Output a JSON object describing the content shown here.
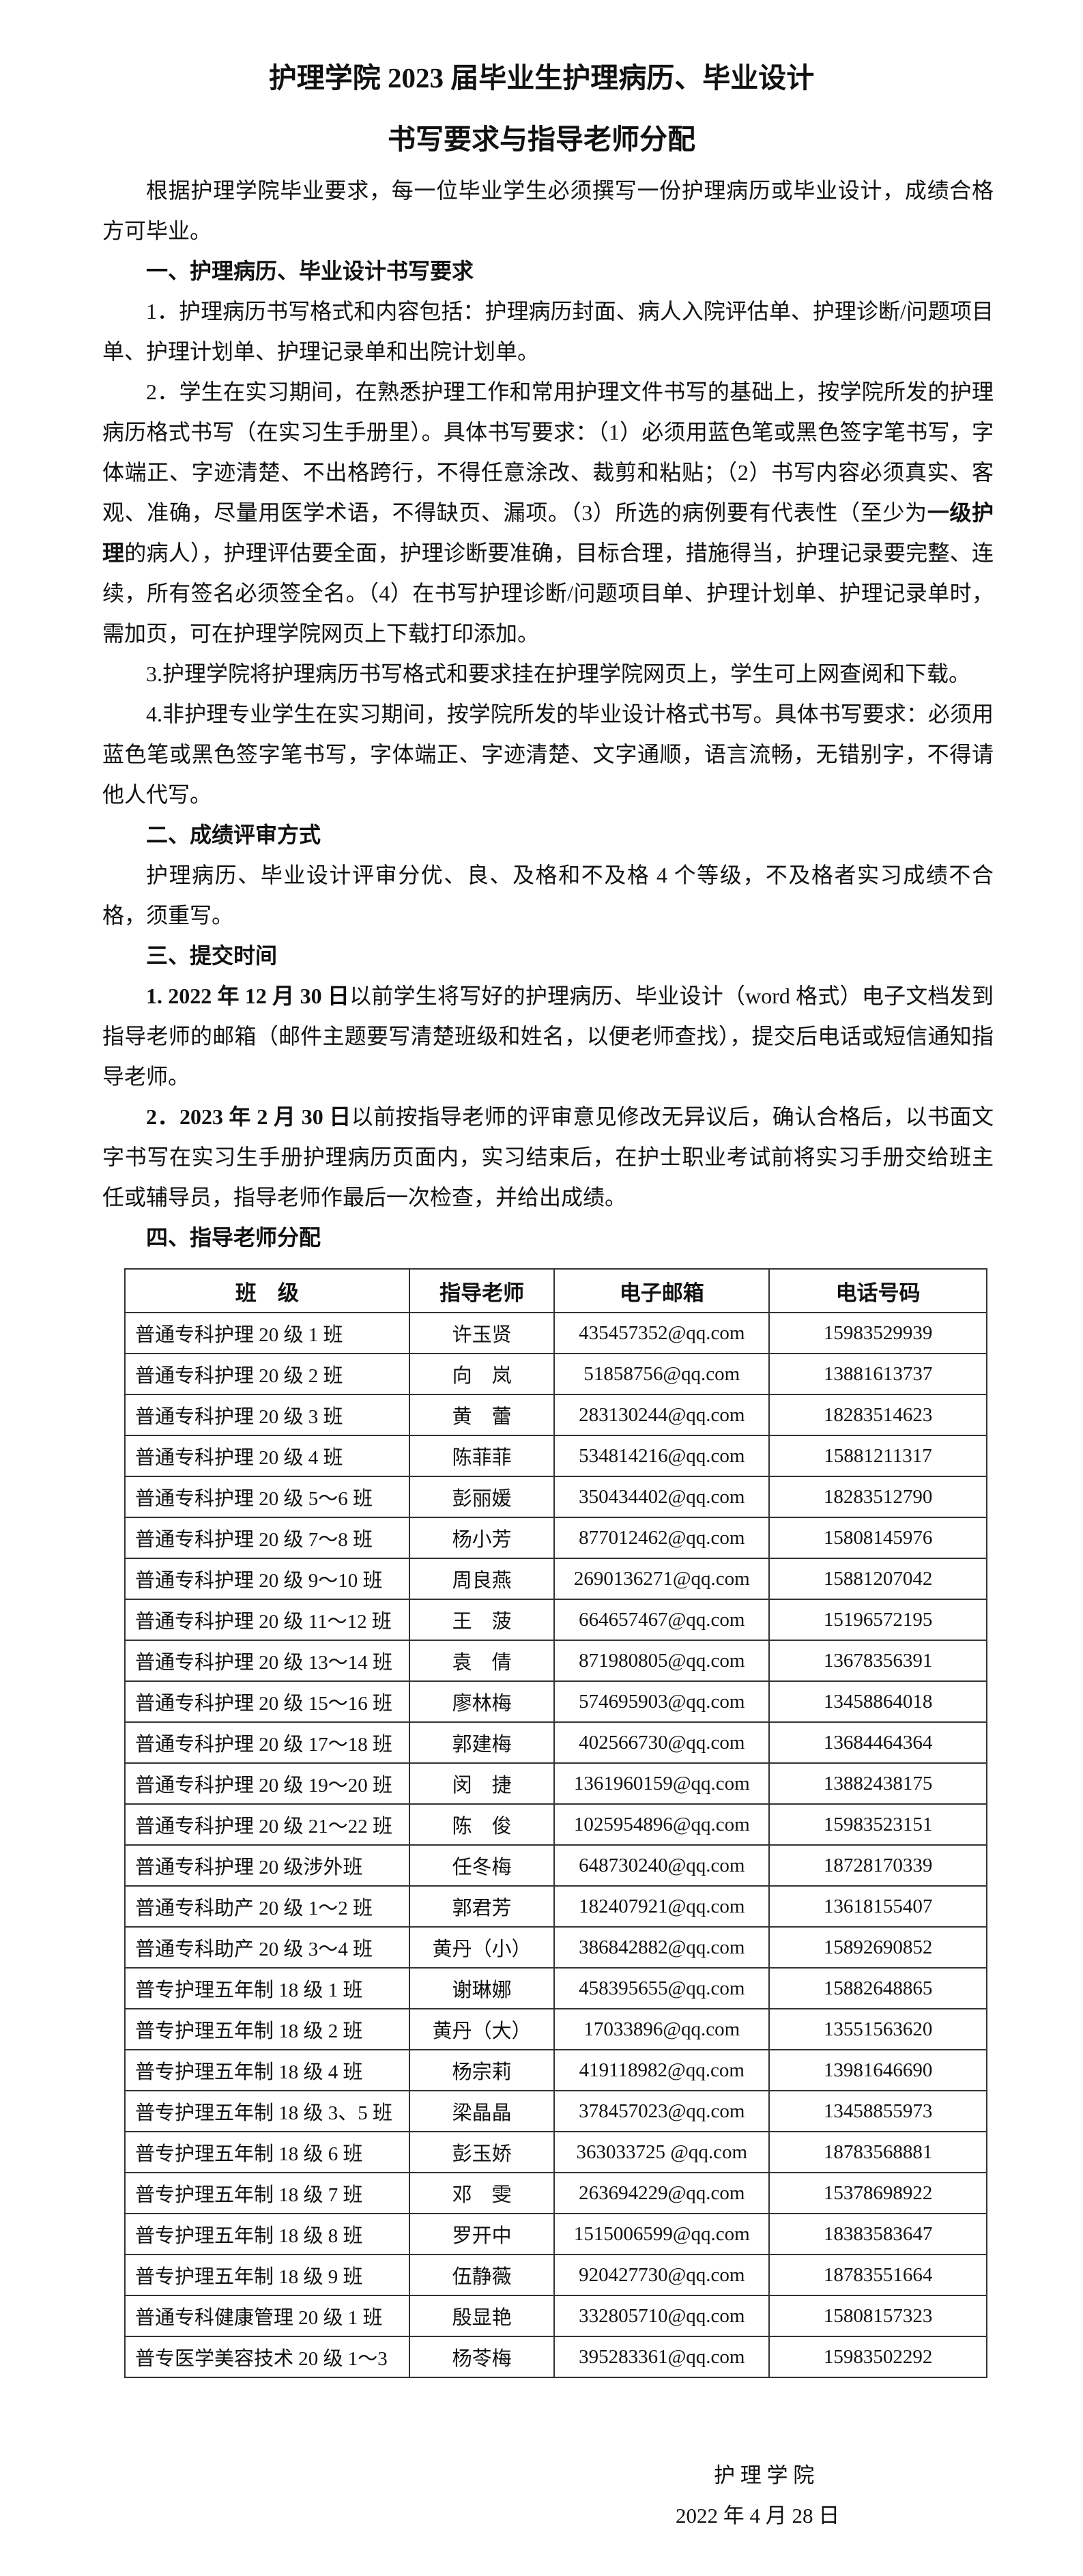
{
  "header": {
    "title_lines": [
      "护理学院 2023 届毕业生护理病历、毕业设计",
      "书写要求与指导老师分配"
    ]
  },
  "body": [
    {
      "style": "body",
      "parts": [
        {
          "text": "根据护理学院毕业要求，每一位毕业学生必须撰写一份护理病历或毕业设计，成绩合格方可毕业。"
        }
      ]
    },
    {
      "style": "heading",
      "parts": [
        {
          "text": "一、护理病历、毕业设计书写要求"
        }
      ]
    },
    {
      "style": "body",
      "parts": [
        {
          "text": "1．护理病历书写格式和内容包括：护理病历封面、病人入院评估单、护理诊断/问题项目单、护理计划单、护理记录单和出院计划单。"
        }
      ]
    },
    {
      "style": "body",
      "parts": [
        {
          "text": "2．学生在实习期间，在熟悉护理工作和常用护理文件书写的基础上，按学院所发的护理病历格式书写（在实习生手册里）。具体书写要求：（1）必须用蓝色笔或黑色签字笔书写，字体端正、字迹清楚、不出格跨行，不得任意涂改、裁剪和粘贴；（2）书写内容必须真实、客观、准确，尽量用医学术语，不得缺页、漏项。（3）所选的病例要有代表性（至少为"
        },
        {
          "text": "一级护理",
          "bold": true
        },
        {
          "text": "的病人），护理评估要全面，护理诊断要准确，目标合理，措施得当，护理记录要完整、连续，所有签名必须签全名。（4）在书写护理诊断/问题项目单、护理计划单、护理记录单时，需加页，可在护理学院网页上下载打印添加。"
        }
      ]
    },
    {
      "style": "body",
      "parts": [
        {
          "text": "3.护理学院将护理病历书写格式和要求挂在护理学院网页上，学生可上网查阅和下载。"
        }
      ]
    },
    {
      "style": "body",
      "parts": [
        {
          "text": "4.非护理专业学生在实习期间，按学院所发的毕业设计格式书写。具体书写要求：必须用蓝色笔或黑色签字笔书写，字体端正、字迹清楚、文字通顺，语言流畅，无错别字，不得请他人代写。"
        }
      ]
    },
    {
      "style": "heading",
      "parts": [
        {
          "text": "二、成绩评审方式"
        }
      ]
    },
    {
      "style": "body",
      "parts": [
        {
          "text": "护理病历、毕业设计评审分优、良、及格和不及格 4 个等级，不及格者实习成绩不合格，须重写。"
        }
      ]
    },
    {
      "style": "heading",
      "parts": [
        {
          "text": "三、提交时间"
        }
      ]
    },
    {
      "style": "body",
      "parts": [
        {
          "text": "1. 2022 年 12 月 30 日",
          "bold": true
        },
        {
          "text": "以前学生将写好的护理病历、毕业设计（word 格式）电子文档发到指导老师的邮箱（邮件主题要写清楚班级和姓名，以便老师查找），提交后电话或短信通知指导老师。"
        }
      ]
    },
    {
      "style": "body",
      "parts": [
        {
          "text": "2．2023 年 2 月 30 日",
          "bold": true
        },
        {
          "text": "以前按指导老师的评审意见修改无异议后，确认合格后，以书面文字书写在实习生手册护理病历页面内，实习结束后，在护士职业考试前将实习手册交给班主任或辅导员，指导老师作最后一次检查，并给出成绩。"
        }
      ]
    },
    {
      "style": "heading",
      "parts": [
        {
          "text": "四、指导老师分配"
        }
      ]
    }
  ],
  "table": {
    "columns": [
      "班　级",
      "指导老师",
      "电子邮箱",
      "电话号码"
    ],
    "rows": [
      [
        "普通专科护理 20 级 1 班",
        "许玉贤",
        "435457352@qq.com",
        "15983529939"
      ],
      [
        "普通专科护理 20 级 2 班",
        "向　岚",
        "51858756@qq.com",
        "13881613737"
      ],
      [
        "普通专科护理 20 级 3 班",
        "黄　蕾",
        "283130244@qq.com",
        "18283514623"
      ],
      [
        "普通专科护理 20 级 4 班",
        "陈菲菲",
        "534814216@qq.com",
        "15881211317"
      ],
      [
        "普通专科护理 20 级 5～6 班",
        "彭丽媛",
        "350434402@qq.com",
        "18283512790"
      ],
      [
        "普通专科护理 20 级 7～8 班",
        "杨小芳",
        "877012462@qq.com",
        "15808145976"
      ],
      [
        "普通专科护理 20 级 9～10 班",
        "周良燕",
        "2690136271@qq.com",
        "15881207042"
      ],
      [
        "普通专科护理 20 级 11～12 班",
        "王　菠",
        "664657467@qq.com",
        "15196572195"
      ],
      [
        "普通专科护理 20 级 13～14 班",
        "袁　倩",
        "871980805@qq.com",
        "13678356391"
      ],
      [
        "普通专科护理 20 级 15～16 班",
        "廖林梅",
        "574695903@qq.com",
        "13458864018"
      ],
      [
        "普通专科护理 20 级 17～18 班",
        "郭建梅",
        "402566730@qq.com",
        "13684464364"
      ],
      [
        "普通专科护理 20 级 19～20 班",
        "闵　捷",
        "1361960159@qq.com",
        "13882438175"
      ],
      [
        "普通专科护理 20 级 21～22 班",
        "陈　俊",
        "1025954896@qq.com",
        "15983523151"
      ],
      [
        "普通专科护理 20 级涉外班",
        "任冬梅",
        "648730240@qq.com",
        "18728170339"
      ],
      [
        "普通专科助产 20 级 1～2 班",
        "郭君芳",
        "182407921@qq.com",
        "13618155407"
      ],
      [
        "普通专科助产 20 级 3～4 班",
        "黄丹（小）",
        "386842882@qq.com",
        "15892690852"
      ],
      [
        "普专护理五年制 18 级 1 班",
        "谢琳娜",
        "458395655@qq.com",
        "15882648865"
      ],
      [
        "普专护理五年制 18 级 2 班",
        "黄丹（大）",
        "17033896@qq.com",
        "13551563620"
      ],
      [
        "普专护理五年制 18 级 4 班",
        "杨宗莉",
        "419118982@qq.com",
        "13981646690"
      ],
      [
        "普专护理五年制 18 级 3、5 班",
        "梁晶晶",
        "378457023@qq.com",
        "13458855973"
      ],
      [
        "普专护理五年制 18 级 6 班",
        "彭玉娇",
        "363033725 @qq.com",
        "18783568881"
      ],
      [
        "普专护理五年制 18 级 7 班",
        "邓　雯",
        "263694229@qq.com",
        "15378698922"
      ],
      [
        "普专护理五年制 18 级 8 班",
        "罗开中",
        "1515006599@qq.com",
        "18383583647"
      ],
      [
        "普专护理五年制 18 级 9 班",
        "伍静薇",
        "920427730@qq.com",
        "18783551664"
      ],
      [
        "普通专科健康管理 20 级 1 班",
        "殷显艳",
        "332805710@qq.com",
        "15808157323"
      ],
      [
        "普专医学美容技术 20 级 1～3",
        "杨苓梅",
        "395283361@qq.com",
        "15983502292"
      ]
    ]
  },
  "footer": {
    "signature": "护 理 学 院",
    "date": "2022 年 4 月 28 日"
  }
}
